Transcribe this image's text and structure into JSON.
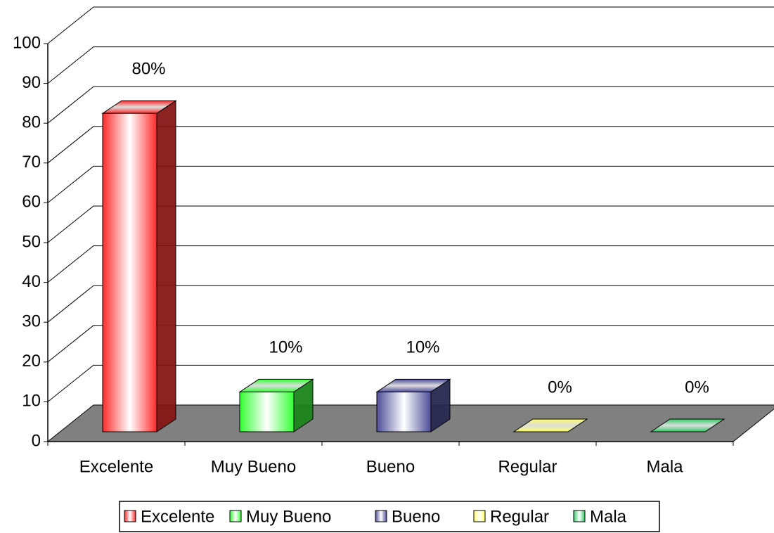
{
  "chart_data": {
    "type": "bar3d",
    "categories": [
      "Excelente",
      "Muy Bueno",
      "Bueno",
      "Regular",
      "Mala"
    ],
    "values": [
      80,
      10,
      10,
      0,
      0
    ],
    "value_labels": [
      "80%",
      "10%",
      "10%",
      "0%",
      "0%"
    ],
    "colors": [
      "#ff2a2a",
      "#33ff33",
      "#4d4d99",
      "#ffff66",
      "#33cc66"
    ],
    "ylim": [
      0,
      100
    ],
    "yticks": [
      0,
      10,
      20,
      30,
      40,
      50,
      60,
      70,
      80,
      90,
      100
    ],
    "grid": true,
    "legend": "bottom"
  }
}
